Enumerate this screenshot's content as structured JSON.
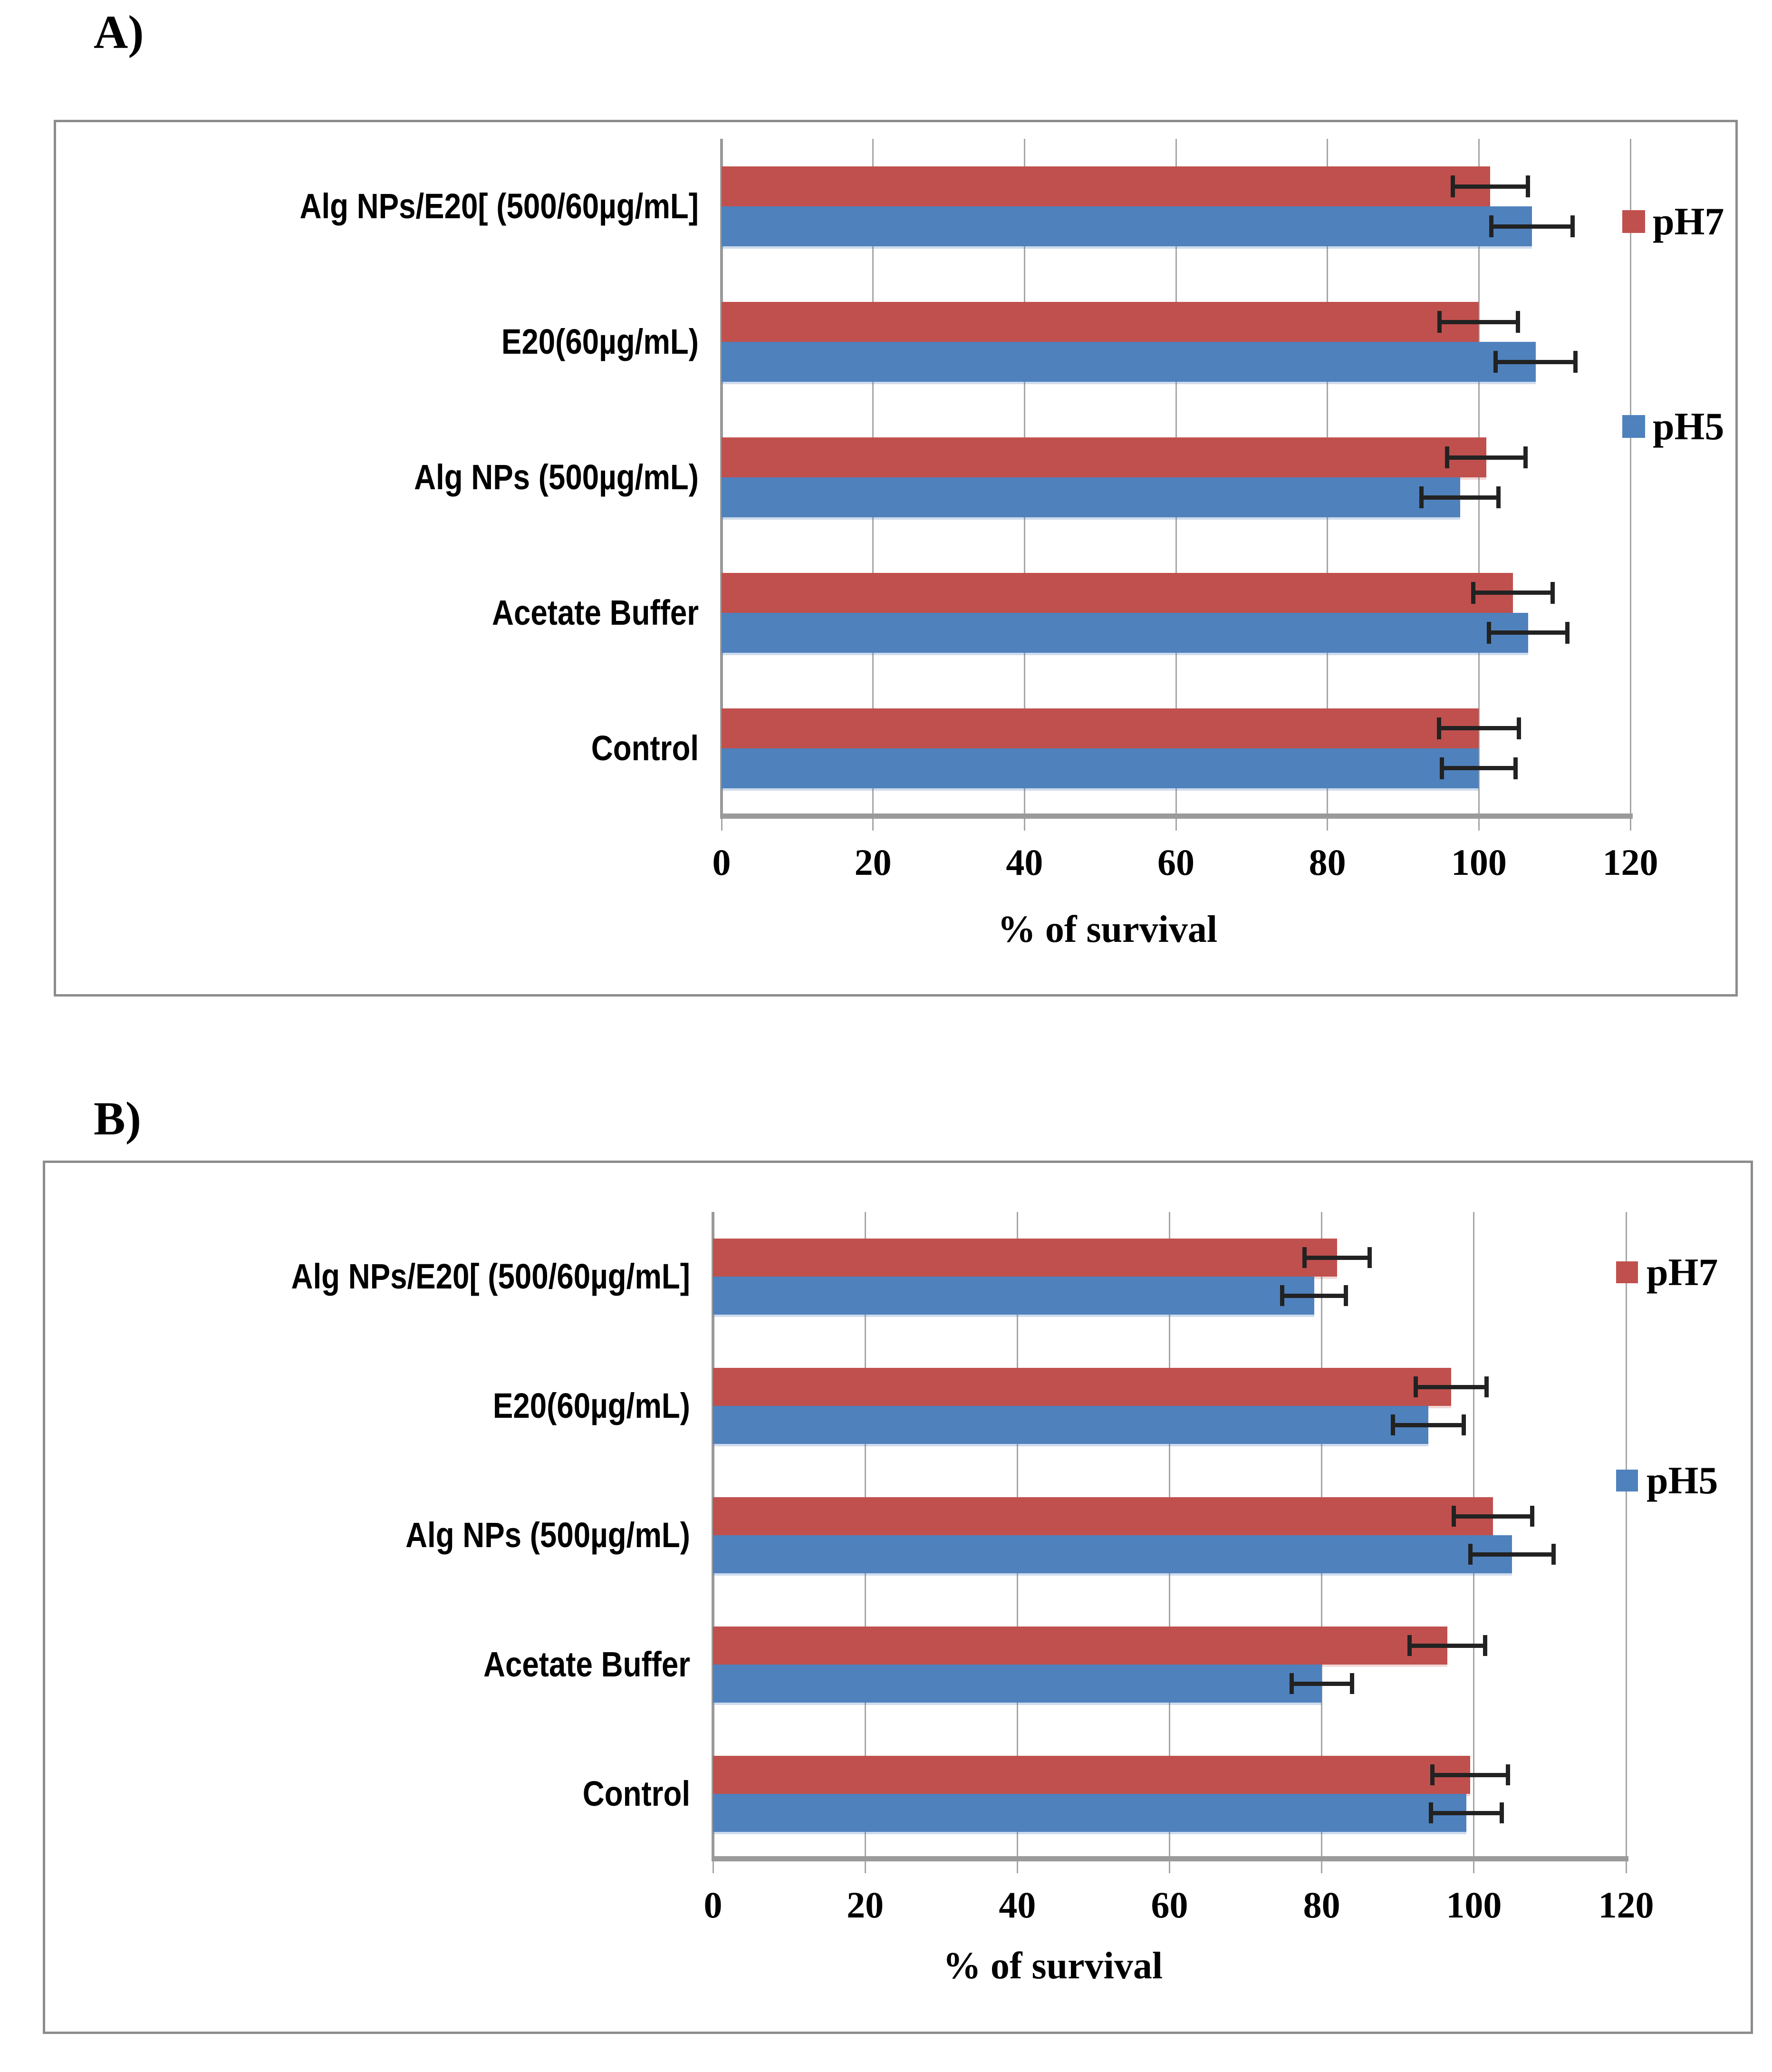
{
  "page": {
    "background": "#ffffff"
  },
  "chart_data": [
    {
      "panel_label": "A)",
      "type": "bar",
      "orientation": "horizontal",
      "xlabel": "% of survival",
      "xlim": [
        0,
        120
      ],
      "xticks": [
        0,
        20,
        40,
        60,
        80,
        100,
        120
      ],
      "grid": true,
      "legend_position": "right",
      "categories": [
        "Alg NPs/E20[ (500/60µg/mL]",
        "E20(60µg/mL)",
        "Alg NPs (500µg/mL)",
        "Acetate Buffer",
        "Control"
      ],
      "series": [
        {
          "name": "pH7",
          "color": "#c0504d",
          "values": [
            101.5,
            100,
            101,
            104.5,
            100
          ],
          "errors": [
            5.0,
            5.2,
            5.2,
            5.3,
            5.3
          ]
        },
        {
          "name": "pH5",
          "color": "#4f81bd",
          "values": [
            107,
            107.5,
            97.5,
            106.5,
            100
          ],
          "errors": [
            5.4,
            5.3,
            5.1,
            5.2,
            4.9
          ]
        }
      ],
      "colors": {
        "grid": "#a6a6a6",
        "axis": "#9a9a9a",
        "frame": "#8c8c8c",
        "error": "#222222"
      }
    },
    {
      "panel_label": "B)",
      "type": "bar",
      "orientation": "horizontal",
      "xlabel": "% of survival",
      "xlim": [
        0,
        120
      ],
      "xticks": [
        0,
        20,
        40,
        60,
        80,
        100,
        120
      ],
      "grid": true,
      "legend_position": "right",
      "categories": [
        "Alg NPs/E20[ (500/60µg/mL]",
        "E20(60µg/mL)",
        "Alg NPs (500µg/mL)",
        "Acetate Buffer",
        "Control"
      ],
      "series": [
        {
          "name": "pH7",
          "color": "#c0504d",
          "values": [
            82,
            97,
            102.5,
            96.5,
            99.5
          ],
          "errors": [
            4.3,
            4.7,
            5.2,
            5.0,
            5.0
          ]
        },
        {
          "name": "pH5",
          "color": "#4f81bd",
          "values": [
            79,
            94,
            105,
            80,
            99
          ],
          "errors": [
            4.2,
            4.7,
            5.5,
            4.0,
            4.7
          ]
        }
      ],
      "colors": {
        "grid": "#a6a6a6",
        "axis": "#9a9a9a",
        "frame": "#8c8c8c",
        "error": "#222222"
      }
    }
  ]
}
